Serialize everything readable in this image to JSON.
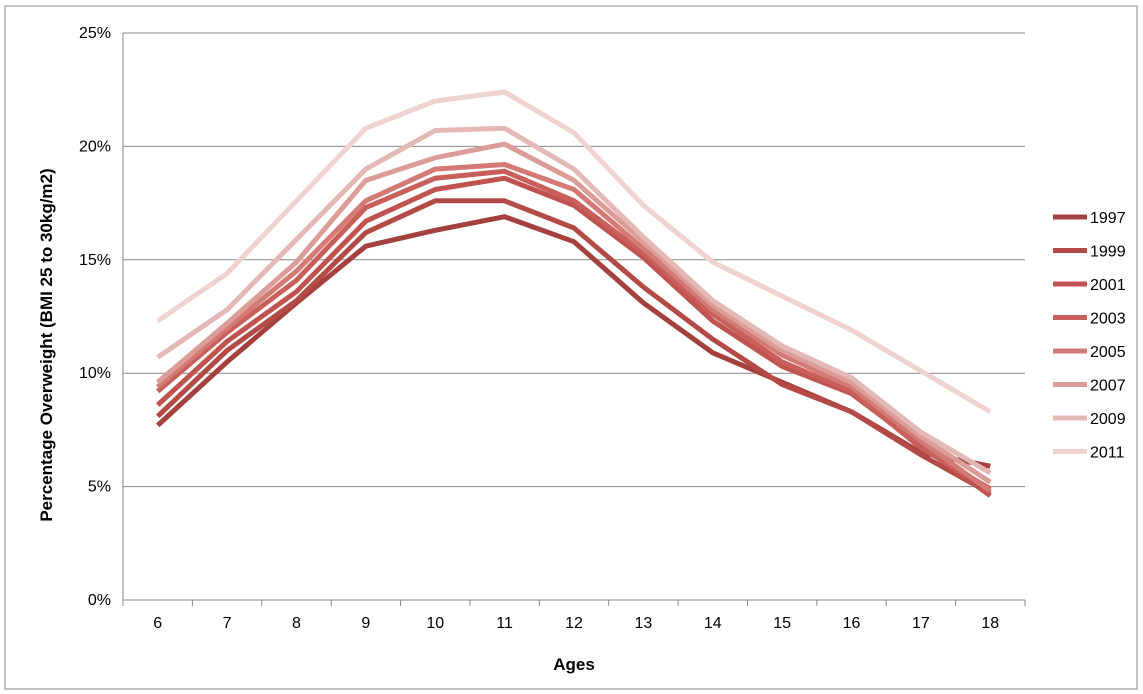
{
  "chart_data": {
    "type": "line",
    "title": "",
    "xlabel": "Ages",
    "ylabel": "Percentage Overweight (BMI 25 to 30kg/m2)",
    "categories": [
      "6",
      "7",
      "8",
      "9",
      "10",
      "11",
      "12",
      "13",
      "14",
      "15",
      "16",
      "17",
      "18"
    ],
    "ylim": [
      0,
      25
    ],
    "yticks": [
      "0%",
      "5%",
      "10%",
      "15%",
      "20%",
      "25%"
    ],
    "ytick_values": [
      0,
      5,
      10,
      15,
      20,
      25
    ],
    "grid": "horizontal",
    "legend_position": "right",
    "series": [
      {
        "name": "1997",
        "color": "#a4403d",
        "values": [
          7.7,
          10.5,
          13.1,
          15.6,
          16.3,
          16.9,
          15.8,
          13.1,
          10.9,
          9.6,
          8.3,
          6.5,
          5.9
        ]
      },
      {
        "name": "1999",
        "color": "#b44a46",
        "values": [
          8.1,
          11.0,
          13.2,
          16.2,
          17.6,
          17.6,
          16.4,
          13.8,
          11.5,
          9.5,
          8.3,
          6.4,
          4.7
        ]
      },
      {
        "name": "2001",
        "color": "#c0534f",
        "values": [
          8.6,
          11.4,
          13.6,
          16.7,
          18.1,
          18.6,
          17.4,
          15.1,
          12.3,
          10.3,
          9.1,
          6.8,
          4.6
        ]
      },
      {
        "name": "2003",
        "color": "#c95f5b",
        "values": [
          9.2,
          11.8,
          14.1,
          17.3,
          18.6,
          18.9,
          17.6,
          15.3,
          12.6,
          10.5,
          9.2,
          6.7,
          4.9
        ]
      },
      {
        "name": "2005",
        "color": "#d37a75",
        "values": [
          9.4,
          12.0,
          14.5,
          17.6,
          19.0,
          19.2,
          18.1,
          15.5,
          12.8,
          10.8,
          9.4,
          7.0,
          4.8
        ]
      },
      {
        "name": "2007",
        "color": "#dc9d98",
        "values": [
          9.6,
          12.2,
          14.9,
          18.5,
          19.5,
          20.1,
          18.5,
          15.8,
          13.0,
          11.0,
          9.6,
          7.2,
          5.2
        ]
      },
      {
        "name": "2009",
        "color": "#e4b8b5",
        "values": [
          10.7,
          12.8,
          15.9,
          19.0,
          20.7,
          20.8,
          19.0,
          16.0,
          13.2,
          11.2,
          9.8,
          7.4,
          5.6
        ]
      },
      {
        "name": "2011",
        "color": "#efd3d1",
        "values": [
          12.3,
          14.4,
          17.6,
          20.8,
          22.0,
          22.4,
          20.6,
          17.4,
          14.9,
          13.4,
          11.9,
          10.1,
          8.3
        ]
      }
    ]
  }
}
